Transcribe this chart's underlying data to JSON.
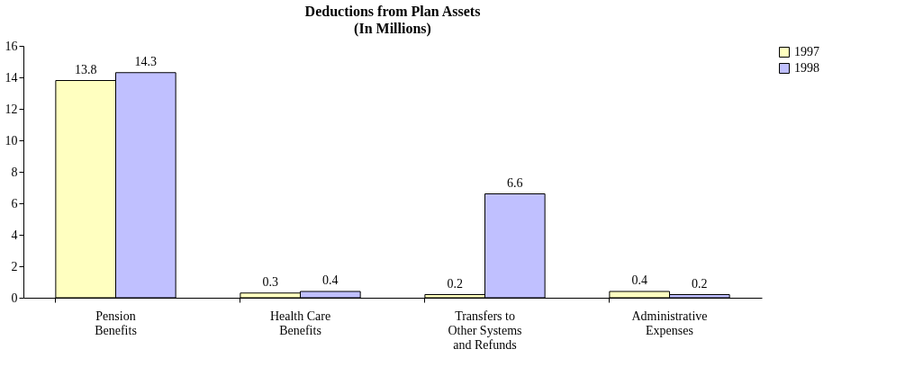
{
  "chart_data": {
    "type": "bar",
    "title": "Deductions from Plan Assets",
    "subtitle": "(In Millions)",
    "categories": [
      "Pension Benefits",
      "Health Care Benefits",
      "Transfers to Other Systems and Refunds",
      "Administrative Expenses"
    ],
    "series": [
      {
        "name": "1997",
        "color": "#ffffc0",
        "values": [
          13.8,
          0.3,
          0.2,
          0.4
        ]
      },
      {
        "name": "1998",
        "color": "#c0c0ff",
        "values": [
          14.3,
          0.4,
          6.6,
          0.2
        ]
      }
    ],
    "ylim": [
      0,
      16
    ],
    "yticks": [
      0,
      2,
      4,
      6,
      8,
      10,
      12,
      14,
      16
    ],
    "grid": false,
    "legend": "right",
    "data_labels": true
  }
}
